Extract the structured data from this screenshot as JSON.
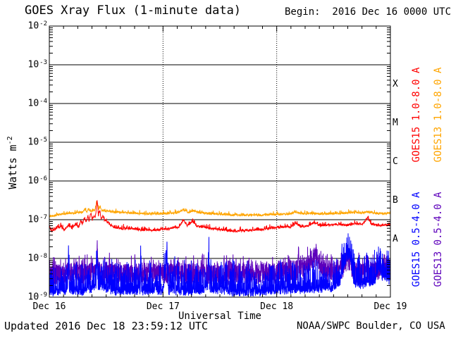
{
  "header": {
    "title": "GOES Xray Flux (1-minute data)",
    "begin_label": "Begin:  2016 Dec 16 0000 UTC"
  },
  "footer": {
    "updated": "Updated 2016 Dec 18 23:59:12 UTC",
    "source": "NOAA/SWPC Boulder, CO USA"
  },
  "chart_data": {
    "type": "line",
    "title": "GOES Xray Flux (1-minute data)",
    "xlabel": "Universal Time",
    "ylabel": {
      "base": "Watts m",
      "exp": "-2"
    },
    "x_range_days": [
      0,
      3
    ],
    "ylim_exp": [
      -9,
      -2
    ],
    "x_ticks": [
      {
        "label": "Dec 16",
        "day": 0
      },
      {
        "label": "Dec 17",
        "day": 1
      },
      {
        "label": "Dec 18",
        "day": 2
      },
      {
        "label": "Dec 19",
        "day": 3
      }
    ],
    "y_ticks": [
      {
        "base": "10",
        "exp": "-2",
        "value": -2
      },
      {
        "base": "10",
        "exp": "-3",
        "value": -3
      },
      {
        "base": "10",
        "exp": "-4",
        "value": -4
      },
      {
        "base": "10",
        "exp": "-5",
        "value": -5
      },
      {
        "base": "10",
        "exp": "-6",
        "value": -6
      },
      {
        "base": "10",
        "exp": "-7",
        "value": -7
      },
      {
        "base": "10",
        "exp": "-8",
        "value": -8
      },
      {
        "base": "10",
        "exp": "-9",
        "value": -9
      }
    ],
    "grid": {
      "h_lines_exp": [
        -3,
        -4,
        -5,
        -6,
        -7,
        -8
      ],
      "v_dotted_days": [
        1,
        2
      ],
      "minor_x_hours": 3
    },
    "flare_classes": [
      {
        "label": "X",
        "exp_mid": -3.5
      },
      {
        "label": "M",
        "exp_mid": -4.5
      },
      {
        "label": "C",
        "exp_mid": -5.5
      },
      {
        "label": "B",
        "exp_mid": -6.5
      },
      {
        "label": "A",
        "exp_mid": -7.5
      }
    ],
    "axis_color": "#000000",
    "draw_order": [
      3,
      2,
      1,
      0
    ],
    "series": [
      {
        "name": "GOES15 1.0-8.0 A",
        "color": "#ff0000",
        "seed": 7,
        "samples": 1500,
        "noise": {
          "amp": 0.03,
          "spike_amp": 0.1,
          "spike_pow": 12
        },
        "anchors": [
          [
            0.0,
            7e-08
          ],
          [
            0.02,
            5e-08
          ],
          [
            0.06,
            6e-08
          ],
          [
            0.1,
            6.5e-08
          ],
          [
            0.13,
            5.5e-08
          ],
          [
            0.17,
            7e-08
          ],
          [
            0.2,
            6e-08
          ],
          [
            0.23,
            7.5e-08
          ],
          [
            0.26,
            6.5e-08
          ],
          [
            0.275,
            9.5e-08
          ],
          [
            0.29,
            7.5e-08
          ],
          [
            0.31,
            1.15e-07
          ],
          [
            0.325,
            8.5e-08
          ],
          [
            0.34,
            1.3e-07
          ],
          [
            0.35,
            9e-08
          ],
          [
            0.365,
            1.5e-07
          ],
          [
            0.378,
            1e-07
          ],
          [
            0.39,
            1.25e-07
          ],
          [
            0.405,
            1.1e-07
          ],
          [
            0.42,
            3.3e-07
          ],
          [
            0.432,
            1.3e-07
          ],
          [
            0.445,
            1.7e-07
          ],
          [
            0.458,
            1e-07
          ],
          [
            0.472,
            1.35e-07
          ],
          [
            0.485,
            9e-08
          ],
          [
            0.5,
            1e-07
          ],
          [
            0.515,
            8e-08
          ],
          [
            0.54,
            7e-08
          ],
          [
            0.58,
            6.3e-08
          ],
          [
            0.64,
            5.8e-08
          ],
          [
            0.72,
            6e-08
          ],
          [
            0.8,
            5.5e-08
          ],
          [
            0.9,
            5.3e-08
          ],
          [
            1.0,
            5.6e-08
          ],
          [
            1.08,
            6e-08
          ],
          [
            1.14,
            6.5e-08
          ],
          [
            1.18,
            1e-07
          ],
          [
            1.21,
            7e-08
          ],
          [
            1.26,
            9e-08
          ],
          [
            1.3,
            6.8e-08
          ],
          [
            1.38,
            6.3e-08
          ],
          [
            1.46,
            5.7e-08
          ],
          [
            1.56,
            5.3e-08
          ],
          [
            1.66,
            5.1e-08
          ],
          [
            1.76,
            5.3e-08
          ],
          [
            1.86,
            5.6e-08
          ],
          [
            1.94,
            6e-08
          ],
          [
            2.02,
            6.3e-08
          ],
          [
            2.08,
            6.7e-08
          ],
          [
            2.13,
            6.3e-08
          ],
          [
            2.17,
            8.3e-08
          ],
          [
            2.21,
            6.6e-08
          ],
          [
            2.28,
            7e-08
          ],
          [
            2.33,
            8.6e-08
          ],
          [
            2.38,
            7.1e-08
          ],
          [
            2.46,
            7.3e-08
          ],
          [
            2.54,
            7.6e-08
          ],
          [
            2.62,
            7.2e-08
          ],
          [
            2.7,
            7.9e-08
          ],
          [
            2.76,
            7.6e-08
          ],
          [
            2.8,
            1.15e-07
          ],
          [
            2.83,
            7.8e-08
          ],
          [
            2.9,
            7.1e-08
          ],
          [
            2.96,
            7.3e-08
          ],
          [
            3.0,
            7.2e-08
          ]
        ]
      },
      {
        "name": "GOES13 1.0-8.0 A",
        "color": "#ffa500",
        "seed": 13,
        "samples": 1500,
        "noise": {
          "amp": 0.025,
          "spike_amp": 0.08,
          "spike_pow": 12
        },
        "anchors": [
          [
            0.0,
            1.25e-07
          ],
          [
            0.06,
            1.3e-07
          ],
          [
            0.12,
            1.4e-07
          ],
          [
            0.18,
            1.45e-07
          ],
          [
            0.24,
            1.5e-07
          ],
          [
            0.29,
            1.55e-07
          ],
          [
            0.31,
            1.8e-07
          ],
          [
            0.33,
            1.6e-07
          ],
          [
            0.345,
            1.9e-07
          ],
          [
            0.36,
            1.65e-07
          ],
          [
            0.378,
            1.7e-07
          ],
          [
            0.4,
            1.75e-07
          ],
          [
            0.42,
            3.1e-07
          ],
          [
            0.433,
            1.8e-07
          ],
          [
            0.447,
            2.1e-07
          ],
          [
            0.46,
            1.7e-07
          ],
          [
            0.48,
            1.75e-07
          ],
          [
            0.5,
            1.65e-07
          ],
          [
            0.54,
            1.6e-07
          ],
          [
            0.6,
            1.55e-07
          ],
          [
            0.68,
            1.5e-07
          ],
          [
            0.76,
            1.45e-07
          ],
          [
            0.86,
            1.4e-07
          ],
          [
            0.96,
            1.42e-07
          ],
          [
            1.04,
            1.45e-07
          ],
          [
            1.12,
            1.5e-07
          ],
          [
            1.18,
            1.85e-07
          ],
          [
            1.22,
            1.55e-07
          ],
          [
            1.27,
            1.7e-07
          ],
          [
            1.32,
            1.5e-07
          ],
          [
            1.42,
            1.42e-07
          ],
          [
            1.52,
            1.38e-07
          ],
          [
            1.62,
            1.33e-07
          ],
          [
            1.72,
            1.3e-07
          ],
          [
            1.82,
            1.3e-07
          ],
          [
            1.92,
            1.33e-07
          ],
          [
            2.02,
            1.36e-07
          ],
          [
            2.1,
            1.4e-07
          ],
          [
            2.17,
            1.55e-07
          ],
          [
            2.23,
            1.42e-07
          ],
          [
            2.3,
            1.47e-07
          ],
          [
            2.37,
            1.4e-07
          ],
          [
            2.46,
            1.42e-07
          ],
          [
            2.56,
            1.46e-07
          ],
          [
            2.64,
            1.5e-07
          ],
          [
            2.7,
            1.55e-07
          ],
          [
            2.76,
            1.48e-07
          ],
          [
            2.8,
            1.58e-07
          ],
          [
            2.86,
            1.47e-07
          ],
          [
            2.93,
            1.42e-07
          ],
          [
            3.0,
            1.46e-07
          ]
        ]
      },
      {
        "name": "GOES15 0.5-4.0 A",
        "color": "#0000ff",
        "seed": 21,
        "samples": 2600,
        "noise": {
          "amp": 0.1,
          "spike_amp": 0.8,
          "spike_pow": 4
        },
        "anchors": [
          [
            0.0,
            1.3e-09
          ],
          [
            0.1,
            1.3e-09
          ],
          [
            0.16,
            1.5e-09
          ],
          [
            0.168,
            1.4e-08
          ],
          [
            0.176,
            1.5e-09
          ],
          [
            0.3,
            1.3e-09
          ],
          [
            0.41,
            1.8e-09
          ],
          [
            0.42,
            8e-09
          ],
          [
            0.43,
            1.8e-09
          ],
          [
            0.6,
            1.3e-09
          ],
          [
            0.8,
            1.4e-09
          ],
          [
            0.805,
            1.1e-08
          ],
          [
            0.81,
            1.4e-09
          ],
          [
            1.0,
            1.4e-09
          ],
          [
            1.035,
            1e-08
          ],
          [
            1.045,
            1.4e-09
          ],
          [
            1.1,
            1.5e-09
          ],
          [
            1.105,
            8e-09
          ],
          [
            1.11,
            1.4e-09
          ],
          [
            1.25,
            1.3e-09
          ],
          [
            1.395,
            1.6e-09
          ],
          [
            1.4,
            1.9e-08
          ],
          [
            1.41,
            1.6e-09
          ],
          [
            1.6,
            1.3e-09
          ],
          [
            1.8,
            1.3e-09
          ],
          [
            2.0,
            1.4e-09
          ],
          [
            2.2,
            1.5e-09
          ],
          [
            2.35,
            1.6e-09
          ],
          [
            2.5,
            1.7e-09
          ],
          [
            2.56,
            2.5e-09
          ],
          [
            2.6,
            7e-09
          ],
          [
            2.625,
            1.2e-08
          ],
          [
            2.645,
            1e-08
          ],
          [
            2.66,
            6e-09
          ],
          [
            2.68,
            2.2e-09
          ],
          [
            2.74,
            2e-09
          ],
          [
            2.8,
            2.2e-09
          ],
          [
            2.86,
            2.5e-09
          ],
          [
            2.9,
            5.5e-09
          ],
          [
            2.93,
            3e-09
          ],
          [
            2.97,
            2.8e-09
          ],
          [
            3.0,
            2.4e-09
          ]
        ]
      },
      {
        "name": "GOES13 0.5-4.0 A",
        "color": "#5d00bb",
        "seed": 33,
        "samples": 2600,
        "noise": {
          "amp": 0.27,
          "spike_amp": 0.3,
          "spike_pow": 7
        },
        "anchors": [
          [
            0.0,
            3.6e-09
          ],
          [
            0.15,
            3.9e-09
          ],
          [
            0.3,
            4e-09
          ],
          [
            0.41,
            4.2e-09
          ],
          [
            0.42,
            1.7e-08
          ],
          [
            0.43,
            4.2e-09
          ],
          [
            0.6,
            3.8e-09
          ],
          [
            0.8,
            3.9e-09
          ],
          [
            1.0,
            4e-09
          ],
          [
            1.2,
            4e-09
          ],
          [
            1.4,
            3.9e-09
          ],
          [
            1.6,
            3.8e-09
          ],
          [
            1.8,
            3.9e-09
          ],
          [
            2.0,
            4.1e-09
          ],
          [
            2.1,
            4.4e-09
          ],
          [
            2.18,
            5e-09
          ],
          [
            2.19,
            1.6e-08
          ],
          [
            2.2,
            5e-09
          ],
          [
            2.26,
            5.5e-09
          ],
          [
            2.31,
            9e-09
          ],
          [
            2.34,
            1.1e-08
          ],
          [
            2.38,
            7e-09
          ],
          [
            2.43,
            4.5e-09
          ],
          [
            2.5,
            4.2e-09
          ],
          [
            2.57,
            5e-09
          ],
          [
            2.6,
            7.5e-09
          ],
          [
            2.63,
            9e-09
          ],
          [
            2.66,
            6e-09
          ],
          [
            2.7,
            4.5e-09
          ],
          [
            2.76,
            4e-09
          ],
          [
            2.84,
            4.3e-09
          ],
          [
            2.9,
            5e-09
          ],
          [
            2.95,
            5.5e-09
          ],
          [
            3.0,
            5.2e-09
          ]
        ]
      }
    ]
  }
}
